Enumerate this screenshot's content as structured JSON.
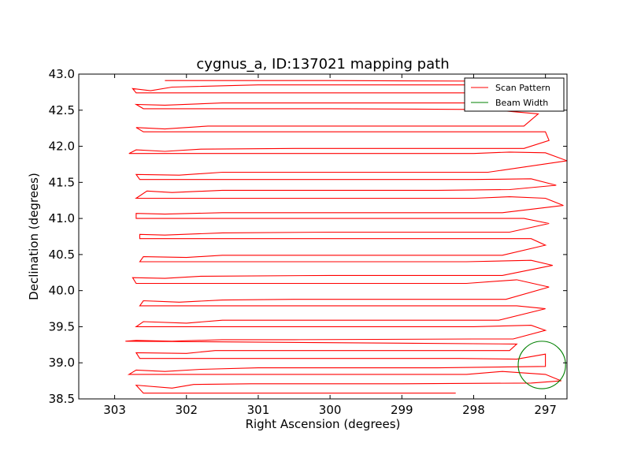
{
  "chart_data": {
    "type": "line",
    "title": "cygnus_a, ID:137021 mapping path",
    "xlabel": "Right Ascension (degrees)",
    "ylabel": "Declination (degrees)",
    "xlim": [
      303.5,
      296.7
    ],
    "ylim": [
      38.5,
      43.0
    ],
    "xticks": [
      303,
      302,
      301,
      300,
      299,
      298,
      297
    ],
    "xtick_labels": [
      "303",
      "302",
      "301",
      "300",
      "299",
      "298",
      "297"
    ],
    "yticks": [
      38.5,
      39.0,
      39.5,
      40.0,
      40.5,
      41.0,
      41.5,
      42.0,
      42.5,
      43.0
    ],
    "ytick_labels": [
      "38.5",
      "39.0",
      "39.5",
      "40.0",
      "40.5",
      "41.0",
      "41.5",
      "42.0",
      "42.5",
      "43.0"
    ],
    "grid": false,
    "legend_position": "top-right",
    "series": [
      {
        "name": "Scan Pattern",
        "color": "#ff0000",
        "points": [
          [
            298.25,
            38.58
          ],
          [
            302.6,
            38.58
          ],
          [
            302.7,
            38.69
          ],
          [
            302.2,
            38.65
          ],
          [
            301.9,
            38.7
          ],
          [
            301.1,
            38.71
          ],
          [
            299.0,
            38.71
          ],
          [
            297.2,
            38.72
          ],
          [
            296.78,
            38.75
          ],
          [
            297.0,
            38.84
          ],
          [
            297.6,
            38.88
          ],
          [
            298.1,
            38.84
          ],
          [
            302.8,
            38.84
          ],
          [
            302.7,
            38.9
          ],
          [
            302.3,
            38.88
          ],
          [
            301.8,
            38.91
          ],
          [
            301.0,
            38.93
          ],
          [
            298.5,
            38.93
          ],
          [
            297.0,
            38.95
          ],
          [
            297.0,
            39.12
          ],
          [
            297.4,
            39.05
          ],
          [
            298.2,
            39.06
          ],
          [
            302.65,
            39.06
          ],
          [
            302.7,
            39.14
          ],
          [
            302.0,
            39.13
          ],
          [
            301.6,
            39.17
          ],
          [
            300.6,
            39.17
          ],
          [
            298.8,
            39.17
          ],
          [
            297.5,
            39.17
          ],
          [
            297.4,
            39.26
          ],
          [
            302.85,
            39.3
          ],
          [
            302.7,
            39.31
          ],
          [
            302.2,
            39.3
          ],
          [
            301.5,
            39.32
          ],
          [
            300.5,
            39.32
          ],
          [
            298.0,
            39.33
          ],
          [
            297.45,
            39.33
          ],
          [
            297.0,
            39.45
          ],
          [
            297.2,
            39.52
          ],
          [
            298.0,
            39.5
          ],
          [
            302.7,
            39.5
          ],
          [
            302.6,
            39.57
          ],
          [
            302.0,
            39.55
          ],
          [
            301.5,
            39.59
          ],
          [
            300.0,
            39.59
          ],
          [
            297.65,
            39.59
          ],
          [
            297.0,
            39.75
          ],
          [
            297.4,
            39.79
          ],
          [
            298.0,
            39.79
          ],
          [
            302.65,
            39.79
          ],
          [
            302.6,
            39.86
          ],
          [
            302.1,
            39.84
          ],
          [
            301.5,
            39.87
          ],
          [
            300.5,
            39.88
          ],
          [
            298.0,
            39.88
          ],
          [
            297.55,
            39.88
          ],
          [
            296.95,
            40.05
          ],
          [
            297.4,
            40.15
          ],
          [
            298.1,
            40.1
          ],
          [
            302.7,
            40.1
          ],
          [
            302.75,
            40.18
          ],
          [
            302.3,
            40.17
          ],
          [
            301.8,
            40.2
          ],
          [
            300.0,
            40.21
          ],
          [
            297.6,
            40.21
          ],
          [
            296.9,
            40.35
          ],
          [
            297.2,
            40.42
          ],
          [
            298.1,
            40.4
          ],
          [
            302.65,
            40.4
          ],
          [
            302.6,
            40.47
          ],
          [
            302.0,
            40.46
          ],
          [
            301.5,
            40.49
          ],
          [
            300.0,
            40.49
          ],
          [
            297.6,
            40.49
          ],
          [
            297.0,
            40.63
          ],
          [
            297.2,
            40.72
          ],
          [
            298.0,
            40.72
          ],
          [
            302.65,
            40.72
          ],
          [
            302.65,
            40.78
          ],
          [
            302.3,
            40.77
          ],
          [
            301.5,
            40.8
          ],
          [
            300.0,
            40.81
          ],
          [
            297.5,
            40.81
          ],
          [
            296.95,
            40.93
          ],
          [
            297.3,
            41.0
          ],
          [
            298.0,
            41.0
          ],
          [
            302.7,
            41.0
          ],
          [
            302.7,
            41.07
          ],
          [
            302.3,
            41.06
          ],
          [
            301.5,
            41.08
          ],
          [
            300.0,
            41.08
          ],
          [
            297.6,
            41.08
          ],
          [
            296.75,
            41.18
          ],
          [
            297.0,
            41.28
          ],
          [
            297.5,
            41.3
          ],
          [
            298.0,
            41.28
          ],
          [
            302.7,
            41.28
          ],
          [
            302.55,
            41.38
          ],
          [
            302.2,
            41.36
          ],
          [
            301.5,
            41.39
          ],
          [
            300.5,
            41.39
          ],
          [
            298.5,
            41.39
          ],
          [
            297.5,
            41.4
          ],
          [
            296.85,
            41.46
          ],
          [
            297.2,
            41.55
          ],
          [
            298.0,
            41.54
          ],
          [
            302.65,
            41.54
          ],
          [
            302.7,
            41.61
          ],
          [
            302.1,
            41.6
          ],
          [
            301.5,
            41.64
          ],
          [
            300.0,
            41.64
          ],
          [
            297.8,
            41.64
          ],
          [
            296.7,
            41.8
          ],
          [
            297.0,
            41.91
          ],
          [
            297.5,
            41.92
          ],
          [
            298.0,
            41.9
          ],
          [
            302.8,
            41.9
          ],
          [
            302.7,
            41.95
          ],
          [
            302.3,
            41.93
          ],
          [
            301.8,
            41.96
          ],
          [
            300.5,
            41.97
          ],
          [
            297.3,
            41.97
          ],
          [
            296.95,
            42.08
          ],
          [
            297.0,
            42.2
          ],
          [
            297.6,
            42.2
          ],
          [
            302.6,
            42.2
          ],
          [
            302.7,
            42.26
          ],
          [
            302.3,
            42.24
          ],
          [
            301.7,
            42.28
          ],
          [
            300.0,
            42.28
          ],
          [
            297.3,
            42.28
          ],
          [
            297.1,
            42.45
          ],
          [
            297.8,
            42.51
          ],
          [
            300.0,
            42.52
          ],
          [
            302.6,
            42.52
          ],
          [
            302.7,
            42.58
          ],
          [
            302.3,
            42.57
          ],
          [
            301.5,
            42.6
          ],
          [
            300.5,
            42.6
          ],
          [
            298.0,
            42.6
          ],
          [
            297.3,
            42.6
          ],
          [
            297.0,
            42.72
          ],
          [
            298.0,
            42.74
          ],
          [
            302.7,
            42.74
          ],
          [
            302.75,
            42.8
          ],
          [
            302.5,
            42.77
          ],
          [
            302.2,
            42.82
          ],
          [
            301.0,
            42.85
          ],
          [
            300.0,
            42.85
          ],
          [
            297.2,
            42.85
          ],
          [
            297.0,
            42.9
          ],
          [
            300.0,
            42.91
          ],
          [
            302.3,
            42.91
          ]
        ]
      },
      {
        "name": "Beam Width",
        "color": "#008000",
        "shape": "circle",
        "center": [
          297.05,
          38.97
        ],
        "radius": 0.33
      }
    ]
  }
}
